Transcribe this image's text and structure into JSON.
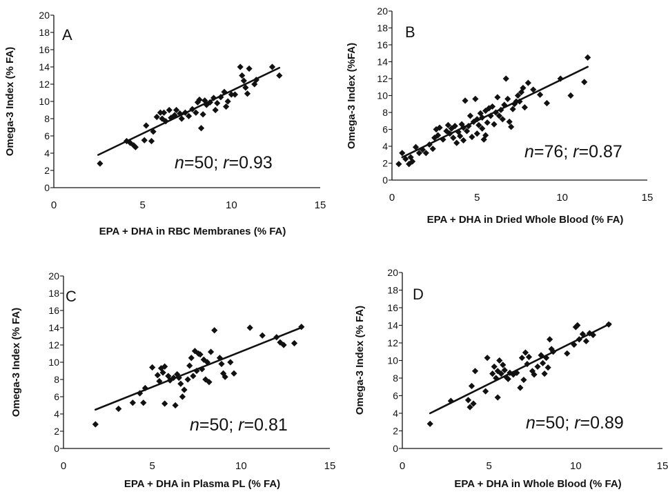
{
  "chart_data": [
    {
      "type": "scatter",
      "panel_label": "A",
      "xlabel": "EPA + DHA in RBC Membranes (% FA)",
      "ylabel": "Omega-3 Index (% FA)",
      "annotation": {
        "n_label": "n",
        "n_value": "=50; ",
        "r_label": "r",
        "r_value": "=0.93"
      },
      "xlim": [
        0,
        15
      ],
      "ylim": [
        0,
        20
      ],
      "xticks": [
        "0",
        "5",
        "10",
        "15"
      ],
      "yticks": [
        "0",
        "2",
        "4",
        "6",
        "8",
        "10",
        "12",
        "14",
        "16",
        "18",
        "20"
      ],
      "trendline": {
        "x": [
          2.5,
          12.7
        ],
        "y": [
          3.8,
          13.9
        ]
      },
      "points": [
        [
          2.6,
          2.8
        ],
        [
          4.1,
          5.4
        ],
        [
          4.3,
          5.2
        ],
        [
          4.5,
          4.9
        ],
        [
          4.6,
          4.7
        ],
        [
          5.1,
          5.5
        ],
        [
          5.2,
          7.2
        ],
        [
          5.5,
          5.4
        ],
        [
          5.6,
          6.5
        ],
        [
          5.8,
          8.2
        ],
        [
          6.0,
          8.7
        ],
        [
          6.1,
          8.0
        ],
        [
          6.2,
          8.7
        ],
        [
          6.3,
          7.7
        ],
        [
          6.5,
          9.0
        ],
        [
          6.6,
          8.1
        ],
        [
          6.8,
          8.4
        ],
        [
          6.9,
          9.0
        ],
        [
          7.1,
          8.6
        ],
        [
          7.2,
          8.0
        ],
        [
          7.4,
          8.7
        ],
        [
          7.6,
          8.3
        ],
        [
          7.8,
          9.1
        ],
        [
          8.0,
          8.7
        ],
        [
          8.1,
          9.9
        ],
        [
          8.2,
          10.2
        ],
        [
          8.3,
          6.9
        ],
        [
          8.4,
          8.5
        ],
        [
          8.5,
          10.1
        ],
        [
          8.6,
          9.6
        ],
        [
          8.8,
          9.9
        ],
        [
          9.0,
          10.4
        ],
        [
          9.1,
          9.0
        ],
        [
          9.2,
          9.8
        ],
        [
          9.4,
          10.5
        ],
        [
          9.6,
          11.1
        ],
        [
          9.7,
          9.4
        ],
        [
          9.8,
          10.0
        ],
        [
          10.0,
          10.8
        ],
        [
          10.2,
          10.8
        ],
        [
          10.5,
          14.0
        ],
        [
          10.6,
          13.0
        ],
        [
          10.7,
          12.4
        ],
        [
          10.8,
          11.6
        ],
        [
          10.9,
          10.9
        ],
        [
          11.0,
          13.8
        ],
        [
          11.3,
          12.0
        ],
        [
          11.4,
          12.5
        ],
        [
          12.3,
          14.0
        ],
        [
          12.7,
          13.0
        ]
      ]
    },
    {
      "type": "scatter",
      "panel_label": "B",
      "xlabel": "EPA + DHA in Dried Whole Blood (% FA)",
      "ylabel": "Omega-3 Index (%FA)",
      "annotation": {
        "n_label": "n",
        "n_value": "=76; ",
        "r_label": "r",
        "r_value": "=0.87"
      },
      "xlim": [
        0,
        15
      ],
      "ylim": [
        0,
        20
      ],
      "xticks": [
        "0",
        "5",
        "10",
        "15"
      ],
      "yticks": [
        "0",
        "2",
        "4",
        "6",
        "8",
        "10",
        "12",
        "14",
        "16",
        "18",
        "20"
      ],
      "trendline": {
        "x": [
          0.6,
          11.5
        ],
        "y": [
          2.7,
          13.4
        ]
      },
      "points": [
        [
          0.4,
          1.9
        ],
        [
          0.6,
          3.2
        ],
        [
          0.8,
          2.5
        ],
        [
          1.0,
          1.9
        ],
        [
          1.1,
          2.7
        ],
        [
          1.2,
          2.2
        ],
        [
          1.4,
          3.9
        ],
        [
          1.6,
          3.2
        ],
        [
          1.8,
          3.6
        ],
        [
          2.0,
          3.2
        ],
        [
          2.2,
          4.2
        ],
        [
          2.4,
          3.7
        ],
        [
          2.5,
          5.0
        ],
        [
          2.6,
          6.0
        ],
        [
          2.7,
          5.3
        ],
        [
          2.8,
          6.2
        ],
        [
          3.0,
          4.8
        ],
        [
          3.2,
          5.8
        ],
        [
          3.3,
          6.5
        ],
        [
          3.4,
          5.5
        ],
        [
          3.5,
          6.1
        ],
        [
          3.6,
          5.0
        ],
        [
          3.7,
          6.4
        ],
        [
          3.8,
          4.4
        ],
        [
          3.9,
          5.7
        ],
        [
          4.0,
          5.2
        ],
        [
          4.1,
          6.6
        ],
        [
          4.2,
          4.7
        ],
        [
          4.2,
          6.2
        ],
        [
          4.3,
          9.4
        ],
        [
          4.4,
          5.8
        ],
        [
          4.5,
          6.4
        ],
        [
          4.6,
          7.6
        ],
        [
          4.7,
          5.1
        ],
        [
          4.8,
          6.9
        ],
        [
          4.9,
          9.6
        ],
        [
          5.0,
          5.5
        ],
        [
          5.0,
          7.2
        ],
        [
          5.1,
          6.5
        ],
        [
          5.2,
          7.9
        ],
        [
          5.3,
          6.1
        ],
        [
          5.3,
          7.4
        ],
        [
          5.4,
          4.8
        ],
        [
          5.5,
          8.2
        ],
        [
          5.5,
          5.3
        ],
        [
          5.6,
          6.8
        ],
        [
          5.7,
          8.5
        ],
        [
          5.8,
          7.6
        ],
        [
          5.9,
          8.7
        ],
        [
          6.0,
          6.6
        ],
        [
          6.1,
          8.0
        ],
        [
          6.2,
          9.8
        ],
        [
          6.3,
          7.6
        ],
        [
          6.4,
          8.3
        ],
        [
          6.5,
          7.2
        ],
        [
          6.6,
          8.9
        ],
        [
          6.7,
          12.0
        ],
        [
          6.8,
          9.6
        ],
        [
          6.9,
          6.9
        ],
        [
          7.0,
          6.3
        ],
        [
          7.1,
          8.4
        ],
        [
          7.2,
          9.0
        ],
        [
          7.3,
          9.3
        ],
        [
          7.4,
          10.0
        ],
        [
          7.5,
          9.3
        ],
        [
          7.6,
          10.4
        ],
        [
          7.7,
          10.9
        ],
        [
          7.8,
          8.6
        ],
        [
          8.0,
          11.5
        ],
        [
          9.1,
          9.1
        ],
        [
          9.9,
          12.0
        ],
        [
          10.5,
          10.0
        ],
        [
          11.3,
          11.6
        ],
        [
          11.5,
          14.5
        ],
        [
          8.3,
          10.7
        ],
        [
          8.7,
          10.1
        ]
      ]
    },
    {
      "type": "scatter",
      "panel_label": "C",
      "xlabel": "EPA + DHA in Plasma PL (% FA)",
      "ylabel": "Omega-3 Index (% FA)",
      "annotation": {
        "n_label": "n",
        "n_value": "=50; ",
        "r_label": "r",
        "r_value": "=0.81"
      },
      "xlim": [
        0,
        15
      ],
      "ylim": [
        0,
        20
      ],
      "xticks": [
        "0",
        "5",
        "10",
        "15"
      ],
      "yticks": [
        "0",
        "2",
        "4",
        "6",
        "8",
        "10",
        "12",
        "14",
        "16",
        "18",
        "20"
      ],
      "trendline": {
        "x": [
          1.8,
          13.5
        ],
        "y": [
          4.5,
          14.1
        ]
      },
      "points": [
        [
          1.8,
          2.8
        ],
        [
          3.1,
          4.6
        ],
        [
          3.9,
          5.3
        ],
        [
          4.3,
          6.4
        ],
        [
          4.5,
          5.3
        ],
        [
          4.6,
          7.0
        ],
        [
          5.0,
          9.4
        ],
        [
          5.3,
          8.5
        ],
        [
          5.4,
          7.8
        ],
        [
          5.5,
          9.3
        ],
        [
          5.6,
          8.8
        ],
        [
          5.7,
          9.5
        ],
        [
          5.7,
          5.2
        ],
        [
          5.9,
          8.4
        ],
        [
          6.0,
          7.9
        ],
        [
          6.2,
          8.2
        ],
        [
          6.3,
          5.0
        ],
        [
          6.4,
          8.6
        ],
        [
          6.5,
          8.2
        ],
        [
          6.6,
          7.5
        ],
        [
          6.7,
          6.0
        ],
        [
          6.8,
          6.8
        ],
        [
          7.0,
          8.0
        ],
        [
          7.1,
          9.6
        ],
        [
          7.2,
          10.5
        ],
        [
          7.3,
          8.4
        ],
        [
          7.4,
          11.3
        ],
        [
          7.5,
          9.0
        ],
        [
          7.6,
          11.0
        ],
        [
          7.7,
          10.9
        ],
        [
          7.8,
          9.2
        ],
        [
          7.9,
          10.3
        ],
        [
          8.0,
          8.0
        ],
        [
          8.1,
          10.0
        ],
        [
          8.2,
          7.7
        ],
        [
          8.3,
          11.2
        ],
        [
          8.5,
          13.7
        ],
        [
          8.8,
          10.5
        ],
        [
          8.9,
          9.8
        ],
        [
          9.0,
          8.7
        ],
        [
          9.1,
          8.3
        ],
        [
          9.4,
          10.0
        ],
        [
          9.6,
          8.7
        ],
        [
          10.5,
          14.0
        ],
        [
          11.2,
          13.1
        ],
        [
          12.0,
          12.9
        ],
        [
          12.2,
          12.3
        ],
        [
          12.4,
          12.0
        ],
        [
          13.0,
          12.2
        ],
        [
          13.4,
          14.1
        ]
      ]
    },
    {
      "type": "scatter",
      "panel_label": "D",
      "xlabel": "EPA + DHA in Whole Blood (% FA)",
      "ylabel": "Omega-3 Index (% FA)",
      "annotation": {
        "n_label": "n",
        "n_value": "=50; ",
        "r_label": "r",
        "r_value": "=0.89"
      },
      "xlim": [
        0,
        15
      ],
      "ylim": [
        0,
        20
      ],
      "xticks": [
        "0",
        "5",
        "10",
        "15"
      ],
      "yticks": [
        "0",
        "2",
        "4",
        "6",
        "8",
        "10",
        "12",
        "14",
        "16",
        "18",
        "20"
      ],
      "trendline": {
        "x": [
          1.6,
          12.0
        ],
        "y": [
          4.0,
          14.2
        ]
      },
      "points": [
        [
          1.6,
          2.8
        ],
        [
          2.8,
          5.4
        ],
        [
          3.8,
          5.5
        ],
        [
          3.9,
          4.7
        ],
        [
          4.0,
          7.1
        ],
        [
          4.1,
          5.1
        ],
        [
          4.2,
          8.8
        ],
        [
          4.8,
          6.5
        ],
        [
          4.9,
          10.3
        ],
        [
          5.2,
          8.5
        ],
        [
          5.3,
          9.3
        ],
        [
          5.4,
          8.0
        ],
        [
          5.5,
          8.8
        ],
        [
          5.5,
          5.8
        ],
        [
          5.6,
          10.0
        ],
        [
          5.7,
          8.5
        ],
        [
          5.8,
          9.5
        ],
        [
          5.9,
          8.9
        ],
        [
          6.0,
          8.1
        ],
        [
          6.1,
          7.9
        ],
        [
          6.2,
          8.6
        ],
        [
          6.4,
          8.4
        ],
        [
          6.6,
          8.6
        ],
        [
          6.8,
          6.9
        ],
        [
          6.9,
          10.3
        ],
        [
          7.0,
          7.8
        ],
        [
          7.1,
          10.9
        ],
        [
          7.2,
          9.6
        ],
        [
          7.3,
          10.4
        ],
        [
          7.5,
          8.8
        ],
        [
          7.6,
          8.4
        ],
        [
          7.8,
          9.3
        ],
        [
          8.0,
          10.6
        ],
        [
          8.1,
          9.7
        ],
        [
          8.2,
          8.5
        ],
        [
          8.3,
          10.3
        ],
        [
          8.4,
          9.2
        ],
        [
          8.5,
          12.4
        ],
        [
          8.6,
          11.3
        ],
        [
          8.7,
          11.0
        ],
        [
          9.5,
          10.8
        ],
        [
          9.9,
          11.8
        ],
        [
          10.0,
          13.8
        ],
        [
          10.1,
          14.0
        ],
        [
          10.2,
          12.4
        ],
        [
          10.4,
          13.0
        ],
        [
          10.6,
          12.2
        ],
        [
          10.8,
          13.1
        ],
        [
          11.0,
          12.9
        ],
        [
          11.9,
          14.1
        ]
      ]
    }
  ]
}
